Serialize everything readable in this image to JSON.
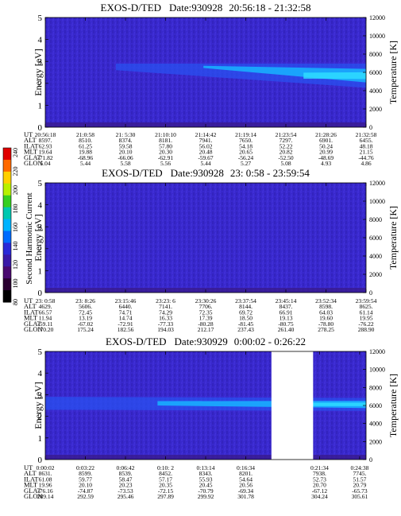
{
  "colorbar": {
    "label": "Second Harmonic Current",
    "ticks": [
      "240",
      "220",
      "200",
      "180",
      "160",
      "140",
      "120",
      "100",
      "80"
    ],
    "colors": [
      "#e00000",
      "#ff6a00",
      "#ffd000",
      "#b8f000",
      "#36d020",
      "#00c8b0",
      "#00b4ff",
      "#006cff",
      "#2a2ad8",
      "#3a1aa8",
      "#4a0a70",
      "#2a0030",
      "#000000"
    ]
  },
  "chart_data": [
    {
      "type": "heatmap",
      "title_instrument": "EXOS-D/TED",
      "title_date": "Date:930928",
      "title_range": "20:56:18 - 21:32:58",
      "ylabel": "Energy [eV]",
      "ylabel_right": "Temperature [K]",
      "ylim": [
        0,
        5
      ],
      "yticks": [
        "0",
        "1",
        "2",
        "3",
        "4",
        "5"
      ],
      "yticks_right": [
        "0",
        "2000",
        "4000",
        "6000",
        "8000",
        "10000",
        "12000"
      ],
      "band": {
        "x": [
          0.22,
          1.0
        ],
        "center_ev": [
          2.75,
          2.35
        ],
        "halfwidth_ev": [
          0.15,
          0.55
        ]
      },
      "gap": null,
      "row_labels": [
        "UT",
        "ALT",
        "ILAT",
        "MLT",
        "GLAT",
        "GLON"
      ],
      "columns": [
        [
          "20:56:18",
          "8597.",
          "62.93",
          "19.64",
          "-71.82",
          "5.04"
        ],
        [
          "21:0:58",
          "8510.",
          "61.25",
          "19.88",
          "-68.96",
          "5.44"
        ],
        [
          "21: 5:30",
          "8374.",
          "59.58",
          "20.10",
          "-66.06",
          "5.58"
        ],
        [
          "21:10:10",
          "8181.",
          "57.80",
          "20.30",
          "-62.91",
          "5.56"
        ],
        [
          "21:14:42",
          "7941.",
          "56.02",
          "20.48",
          "-59.67",
          "5.44"
        ],
        [
          "21:19:14",
          "7650.",
          "54.18",
          "20.65",
          "-56.24",
          "5.27"
        ],
        [
          "21:23:54",
          "7297.",
          "52.22",
          "20.82",
          "-52.50",
          "5.08"
        ],
        [
          "21:28:26",
          "6901.",
          "50.24",
          "20.99",
          "-48.69",
          "4.93"
        ],
        [
          "21:32:58",
          "6455.",
          "48.18",
          "21.15",
          "-44.76",
          "4.86"
        ]
      ],
      "column_positions": [
        0,
        0.125,
        0.25,
        0.375,
        0.5,
        0.625,
        0.75,
        0.875,
        1.0
      ]
    },
    {
      "type": "heatmap",
      "title_instrument": "EXOS-D/TED",
      "title_date": "Date:930928",
      "title_range": "23: 0:58 - 23:59:54",
      "ylabel": "Energy [eV]",
      "ylabel_right": "Temperature [K]",
      "ylim": [
        0,
        5
      ],
      "yticks": [
        "0",
        "1",
        "2",
        "3",
        "4",
        "5"
      ],
      "yticks_right": [
        "0",
        "2000",
        "4000",
        "6000",
        "8000",
        "10000",
        "12000"
      ],
      "band": null,
      "gap": null,
      "row_labels": [
        "UT",
        "ALT",
        "ILAT",
        "MLT",
        "GLAT",
        "GLON"
      ],
      "columns": [
        [
          "23: 0:58",
          "4629.",
          "66.57",
          "11.94",
          "-59.11",
          "170.20"
        ],
        [
          "23: 8:26",
          "5606.",
          "72.45",
          "13.19",
          "-67.02",
          "175.24"
        ],
        [
          "23:15:46",
          "6440.",
          "74.71",
          "14.74",
          "-72.91",
          "182.56"
        ],
        [
          "23:23: 6",
          "7141.",
          "74.29",
          "16.33",
          "-77.33",
          "194.03"
        ],
        [
          "23:30:26",
          "7706.",
          "72.35",
          "17.39",
          "-80.28",
          "212.17"
        ],
        [
          "23:37:54",
          "8144.",
          "69.72",
          "18.50",
          "-81.45",
          "237.43"
        ],
        [
          "23:45:14",
          "8437.",
          "66.91",
          "19.13",
          "-80.75",
          "261.40"
        ],
        [
          "23:52:34",
          "8598.",
          "64.03",
          "19.60",
          "-78.80",
          "278.25"
        ],
        [
          "23:59:54",
          "8625.",
          "61.14",
          "19.95",
          "-76.22",
          "288.90"
        ]
      ],
      "column_positions": [
        0,
        0.125,
        0.25,
        0.375,
        0.5,
        0.625,
        0.75,
        0.875,
        1.0
      ]
    },
    {
      "type": "heatmap",
      "title_instrument": "EXOS-D/TED",
      "title_date": "Date:930929",
      "title_range": "0:00:02 - 0:26:22",
      "ylabel": "Energy [eV]",
      "ylabel_right": "Temperature [K]",
      "ylim": [
        0,
        5
      ],
      "yticks": [
        "0",
        "1",
        "2",
        "3",
        "4",
        "5"
      ],
      "yticks_right": [
        "0",
        "2000",
        "4000",
        "6000",
        "8000",
        "10000",
        "12000"
      ],
      "band": {
        "x": [
          0.0,
          1.0
        ],
        "center_ev": [
          2.6,
          2.55
        ],
        "halfwidth_ev": [
          0.3,
          0.3
        ]
      },
      "gap": [
        0.705,
        0.835
      ],
      "row_labels": [
        "UT",
        "ALT",
        "ILAT",
        "MLT",
        "GLAT",
        "GLON"
      ],
      "columns": [
        [
          "0:00:02",
          "8631.",
          "61.08",
          "19.96",
          "-76.16",
          "289.14"
        ],
        [
          "0:03:22",
          "8599.",
          "59.77",
          "20.10",
          "-74.87",
          "292.59"
        ],
        [
          "0:06:42",
          "8539.",
          "58.47",
          "20.23",
          "-73.53",
          "295.46"
        ],
        [
          "0:10: 2",
          "8452.",
          "57.17",
          "20.35",
          "-72.15",
          "297.89"
        ],
        [
          "0:13:14",
          "8343.",
          "55.93",
          "20.45",
          "-70.79",
          "299.92"
        ],
        [
          "0:16:34",
          "8201.",
          "54.64",
          "20.56",
          "-69.34",
          "301.78"
        ],
        [
          "0:21:34",
          "7938.",
          "52.73",
          "20.70",
          "-67.12",
          "304.24"
        ],
        [
          "0:24:38",
          "7745.",
          "51.57",
          "20.79",
          "-65.73",
          "305.61"
        ]
      ],
      "column_positions": [
        0,
        0.125,
        0.25,
        0.375,
        0.5,
        0.625,
        0.855,
        0.98
      ]
    }
  ]
}
